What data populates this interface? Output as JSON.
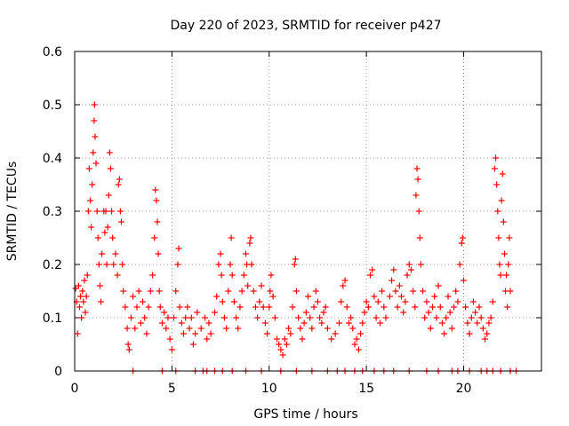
{
  "chart_data": {
    "type": "scatter",
    "title": "Day 220 of 2023, SRMTID for receiver p427",
    "xlabel": "GPS time / hours",
    "ylabel": "SRMTID / TECUs",
    "xlim": [
      0,
      24
    ],
    "ylim": [
      0,
      0.6
    ],
    "xticks": [
      {
        "value": 0,
        "label": "0"
      },
      {
        "value": 5,
        "label": "5"
      },
      {
        "value": 10,
        "label": "10"
      },
      {
        "value": 15,
        "label": "15"
      },
      {
        "value": 20,
        "label": "20"
      }
    ],
    "yticks": [
      {
        "value": 0,
        "label": "0"
      },
      {
        "value": 0.1,
        "label": "0.1"
      },
      {
        "value": 0.2,
        "label": "0.2"
      },
      {
        "value": 0.3,
        "label": "0.3"
      },
      {
        "value": 0.4,
        "label": "0.4"
      },
      {
        "value": 0.5,
        "label": "0.5"
      },
      {
        "value": 0.6,
        "label": "0.6"
      }
    ],
    "grid": true,
    "series": [
      {
        "name": "SRMTID",
        "color": "#ff0000",
        "marker": "plus",
        "points": [
          [
            0.05,
            0.155
          ],
          [
            0.1,
            0.13
          ],
          [
            0.15,
            0.07
          ],
          [
            0.2,
            0.16
          ],
          [
            0.25,
            0.12
          ],
          [
            0.3,
            0.14
          ],
          [
            0.35,
            0.1
          ],
          [
            0.4,
            0.15
          ],
          [
            0.45,
            0.13
          ],
          [
            0.5,
            0.17
          ],
          [
            0.55,
            0.11
          ],
          [
            0.6,
            0.14
          ],
          [
            0.65,
            0.18
          ],
          [
            0.7,
            0.3
          ],
          [
            0.75,
            0.38
          ],
          [
            0.8,
            0.32
          ],
          [
            0.85,
            0.27
          ],
          [
            0.9,
            0.35
          ],
          [
            0.95,
            0.41
          ],
          [
            1.0,
            0.47
          ],
          [
            1.02,
            0.5
          ],
          [
            1.05,
            0.44
          ],
          [
            1.1,
            0.39
          ],
          [
            1.15,
            0.3
          ],
          [
            1.2,
            0.25
          ],
          [
            1.25,
            0.2
          ],
          [
            1.3,
            0.16
          ],
          [
            1.35,
            0.13
          ],
          [
            1.4,
            0.22
          ],
          [
            1.5,
            0.3
          ],
          [
            1.55,
            0.26
          ],
          [
            1.6,
            0.3
          ],
          [
            1.65,
            0.2
          ],
          [
            1.7,
            0.27
          ],
          [
            1.75,
            0.33
          ],
          [
            1.8,
            0.41
          ],
          [
            1.85,
            0.38
          ],
          [
            1.9,
            0.3
          ],
          [
            1.95,
            0.25
          ],
          [
            2.0,
            0.2
          ],
          [
            2.1,
            0.22
          ],
          [
            2.2,
            0.18
          ],
          [
            2.25,
            0.35
          ],
          [
            2.3,
            0.36
          ],
          [
            2.35,
            0.3
          ],
          [
            2.4,
            0.28
          ],
          [
            2.45,
            0.2
          ],
          [
            2.5,
            0.15
          ],
          [
            2.6,
            0.12
          ],
          [
            2.7,
            0.08
          ],
          [
            2.75,
            0.05
          ],
          [
            2.8,
            0.04
          ],
          [
            2.9,
            0.1
          ],
          [
            3.0,
            0.14
          ],
          [
            3.1,
            0.08
          ],
          [
            3.2,
            0.12
          ],
          [
            3.3,
            0.15
          ],
          [
            3.4,
            0.09
          ],
          [
            3.5,
            0.13
          ],
          [
            3.6,
            0.1
          ],
          [
            3.7,
            0.07
          ],
          [
            3.8,
            0.12
          ],
          [
            3.9,
            0.15
          ],
          [
            4.0,
            0.18
          ],
          [
            4.1,
            0.25
          ],
          [
            4.15,
            0.34
          ],
          [
            4.2,
            0.32
          ],
          [
            4.25,
            0.28
          ],
          [
            4.3,
            0.22
          ],
          [
            4.35,
            0.15
          ],
          [
            4.4,
            0.12
          ],
          [
            4.5,
            0.09
          ],
          [
            4.6,
            0.11
          ],
          [
            4.7,
            0.08
          ],
          [
            4.8,
            0.1
          ],
          [
            4.9,
            0.06
          ],
          [
            5.0,
            0.04
          ],
          [
            5.1,
            0.1
          ],
          [
            5.2,
            0.15
          ],
          [
            5.3,
            0.2
          ],
          [
            5.35,
            0.23
          ],
          [
            5.4,
            0.12
          ],
          [
            5.5,
            0.09
          ],
          [
            5.6,
            0.07
          ],
          [
            5.7,
            0.1
          ],
          [
            5.8,
            0.12
          ],
          [
            5.9,
            0.08
          ],
          [
            6.0,
            0.1
          ],
          [
            6.1,
            0.05
          ],
          [
            6.2,
            0.07
          ],
          [
            6.3,
            0.11
          ],
          [
            6.5,
            0.08
          ],
          [
            6.7,
            0.1
          ],
          [
            6.8,
            0.06
          ],
          [
            6.9,
            0.09
          ],
          [
            7.0,
            0.07
          ],
          [
            7.2,
            0.11
          ],
          [
            7.3,
            0.14
          ],
          [
            7.4,
            0.2
          ],
          [
            7.5,
            0.22
          ],
          [
            7.55,
            0.18
          ],
          [
            7.6,
            0.13
          ],
          [
            7.7,
            0.1
          ],
          [
            7.8,
            0.08
          ],
          [
            7.9,
            0.15
          ],
          [
            8.0,
            0.2
          ],
          [
            8.05,
            0.25
          ],
          [
            8.1,
            0.18
          ],
          [
            8.2,
            0.13
          ],
          [
            8.3,
            0.1
          ],
          [
            8.4,
            0.08
          ],
          [
            8.5,
            0.12
          ],
          [
            8.6,
            0.15
          ],
          [
            8.7,
            0.18
          ],
          [
            8.8,
            0.22
          ],
          [
            8.85,
            0.2
          ],
          [
            8.9,
            0.16
          ],
          [
            9.0,
            0.24
          ],
          [
            9.05,
            0.25
          ],
          [
            9.1,
            0.2
          ],
          [
            9.2,
            0.15
          ],
          [
            9.3,
            0.12
          ],
          [
            9.4,
            0.1
          ],
          [
            9.5,
            0.13
          ],
          [
            9.6,
            0.16
          ],
          [
            9.7,
            0.12
          ],
          [
            9.8,
            0.09
          ],
          [
            9.9,
            0.07
          ],
          [
            10.0,
            0.12
          ],
          [
            10.05,
            0.15
          ],
          [
            10.1,
            0.18
          ],
          [
            10.2,
            0.14
          ],
          [
            10.3,
            0.1
          ],
          [
            10.4,
            0.06
          ],
          [
            10.5,
            0.05
          ],
          [
            10.6,
            0.04
          ],
          [
            10.7,
            0.03
          ],
          [
            10.8,
            0.06
          ],
          [
            10.9,
            0.05
          ],
          [
            11.0,
            0.08
          ],
          [
            11.1,
            0.07
          ],
          [
            11.2,
            0.12
          ],
          [
            11.3,
            0.2
          ],
          [
            11.35,
            0.21
          ],
          [
            11.4,
            0.15
          ],
          [
            11.5,
            0.1
          ],
          [
            11.6,
            0.08
          ],
          [
            11.7,
            0.06
          ],
          [
            11.8,
            0.09
          ],
          [
            11.9,
            0.11
          ],
          [
            12.0,
            0.14
          ],
          [
            12.1,
            0.1
          ],
          [
            12.2,
            0.08
          ],
          [
            12.3,
            0.12
          ],
          [
            12.4,
            0.15
          ],
          [
            12.5,
            0.13
          ],
          [
            12.6,
            0.1
          ],
          [
            12.7,
            0.09
          ],
          [
            12.8,
            0.11
          ],
          [
            12.9,
            0.12
          ],
          [
            13.0,
            0.08
          ],
          [
            13.2,
            0.06
          ],
          [
            13.4,
            0.07
          ],
          [
            13.6,
            0.09
          ],
          [
            13.7,
            0.13
          ],
          [
            13.8,
            0.16
          ],
          [
            13.9,
            0.17
          ],
          [
            14.0,
            0.12
          ],
          [
            14.1,
            0.09
          ],
          [
            14.2,
            0.1
          ],
          [
            14.3,
            0.08
          ],
          [
            14.4,
            0.05
          ],
          [
            14.5,
            0.06
          ],
          [
            14.6,
            0.04
          ],
          [
            14.7,
            0.07
          ],
          [
            14.8,
            0.09
          ],
          [
            14.9,
            0.11
          ],
          [
            15.0,
            0.13
          ],
          [
            15.1,
            0.12
          ],
          [
            15.2,
            0.18
          ],
          [
            15.3,
            0.19
          ],
          [
            15.4,
            0.14
          ],
          [
            15.5,
            0.1
          ],
          [
            15.6,
            0.13
          ],
          [
            15.7,
            0.09
          ],
          [
            15.8,
            0.15
          ],
          [
            15.9,
            0.12
          ],
          [
            16.0,
            0.1
          ],
          [
            16.2,
            0.14
          ],
          [
            16.3,
            0.17
          ],
          [
            16.4,
            0.19
          ],
          [
            16.5,
            0.15
          ],
          [
            16.6,
            0.12
          ],
          [
            16.7,
            0.16
          ],
          [
            16.8,
            0.14
          ],
          [
            16.9,
            0.11
          ],
          [
            17.0,
            0.13
          ],
          [
            17.1,
            0.18
          ],
          [
            17.2,
            0.2
          ],
          [
            17.3,
            0.19
          ],
          [
            17.4,
            0.15
          ],
          [
            17.5,
            0.12
          ],
          [
            17.55,
            0.33
          ],
          [
            17.6,
            0.38
          ],
          [
            17.65,
            0.36
          ],
          [
            17.7,
            0.3
          ],
          [
            17.75,
            0.25
          ],
          [
            17.8,
            0.2
          ],
          [
            17.9,
            0.15
          ],
          [
            18.0,
            0.1
          ],
          [
            18.1,
            0.13
          ],
          [
            18.2,
            0.11
          ],
          [
            18.3,
            0.08
          ],
          [
            18.4,
            0.12
          ],
          [
            18.5,
            0.14
          ],
          [
            18.6,
            0.1
          ],
          [
            18.7,
            0.16
          ],
          [
            18.8,
            0.12
          ],
          [
            18.9,
            0.09
          ],
          [
            19.0,
            0.07
          ],
          [
            19.1,
            0.1
          ],
          [
            19.2,
            0.14
          ],
          [
            19.3,
            0.11
          ],
          [
            19.4,
            0.08
          ],
          [
            19.5,
            0.12
          ],
          [
            19.6,
            0.15
          ],
          [
            19.7,
            0.13
          ],
          [
            19.8,
            0.2
          ],
          [
            19.9,
            0.24
          ],
          [
            19.95,
            0.25
          ],
          [
            20.0,
            0.17
          ],
          [
            20.1,
            0.12
          ],
          [
            20.2,
            0.09
          ],
          [
            20.3,
            0.07
          ],
          [
            20.4,
            0.1
          ],
          [
            20.5,
            0.13
          ],
          [
            20.6,
            0.11
          ],
          [
            20.7,
            0.09
          ],
          [
            20.8,
            0.12
          ],
          [
            20.9,
            0.1
          ],
          [
            21.0,
            0.08
          ],
          [
            21.1,
            0.06
          ],
          [
            21.2,
            0.07
          ],
          [
            21.3,
            0.09
          ],
          [
            21.4,
            0.1
          ],
          [
            21.5,
            0.13
          ],
          [
            21.6,
            0.38
          ],
          [
            21.65,
            0.4
          ],
          [
            21.7,
            0.35
          ],
          [
            21.75,
            0.3
          ],
          [
            21.8,
            0.25
          ],
          [
            21.85,
            0.2
          ],
          [
            21.9,
            0.18
          ],
          [
            21.95,
            0.32
          ],
          [
            22.0,
            0.37
          ],
          [
            22.05,
            0.28
          ],
          [
            22.1,
            0.22
          ],
          [
            22.15,
            0.15
          ],
          [
            22.2,
            0.18
          ],
          [
            22.25,
            0.12
          ],
          [
            22.3,
            0.2
          ],
          [
            22.35,
            0.25
          ],
          [
            22.4,
            0.15
          ],
          [
            3.0,
            0
          ],
          [
            4.5,
            0
          ],
          [
            5.2,
            0
          ],
          [
            6.2,
            0
          ],
          [
            6.6,
            0
          ],
          [
            6.8,
            0
          ],
          [
            7.2,
            0
          ],
          [
            7.6,
            0
          ],
          [
            8.1,
            0
          ],
          [
            8.8,
            0
          ],
          [
            9.6,
            0
          ],
          [
            10.6,
            0
          ],
          [
            11.4,
            0
          ],
          [
            12.2,
            0
          ],
          [
            13.0,
            0
          ],
          [
            13.5,
            0
          ],
          [
            13.9,
            0
          ],
          [
            14.4,
            0
          ],
          [
            14.8,
            0
          ],
          [
            15.4,
            0
          ],
          [
            15.9,
            0
          ],
          [
            16.4,
            0
          ],
          [
            17.2,
            0
          ],
          [
            18.1,
            0
          ],
          [
            18.7,
            0
          ],
          [
            19.4,
            0
          ],
          [
            19.7,
            0
          ],
          [
            20.3,
            0
          ],
          [
            20.9,
            0
          ],
          [
            21.2,
            0
          ],
          [
            21.5,
            0
          ],
          [
            21.9,
            0
          ],
          [
            22.4,
            0
          ],
          [
            22.7,
            0
          ]
        ]
      }
    ]
  }
}
